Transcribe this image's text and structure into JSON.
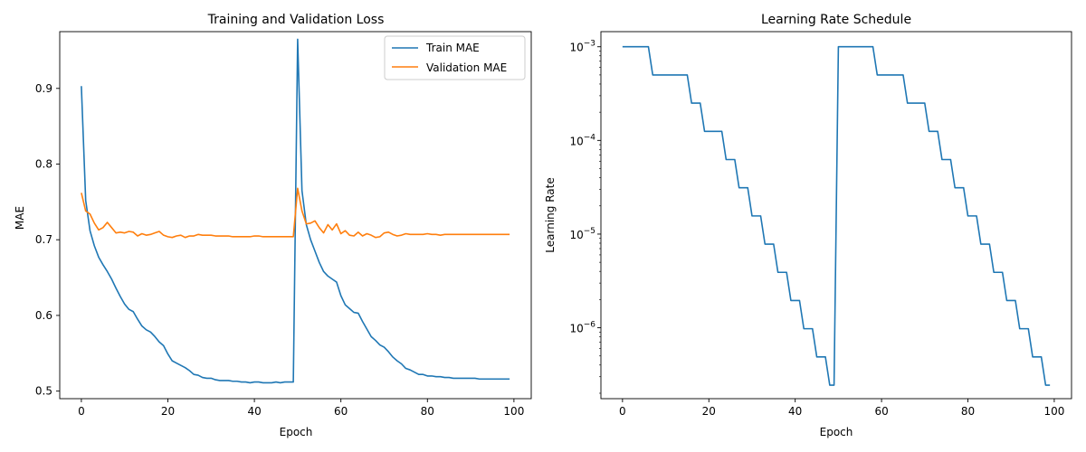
{
  "chart_data": [
    {
      "type": "line",
      "title": "Training and Validation Loss",
      "xlabel": "Epoch",
      "ylabel": "MAE",
      "xlim": [
        -5,
        104
      ],
      "ylim": [
        0.49,
        0.975
      ],
      "xticks": [
        0,
        20,
        40,
        60,
        80,
        100
      ],
      "xtick_labels": [
        "0",
        "20",
        "40",
        "60",
        "80",
        "100"
      ],
      "yticks": [
        0.5,
        0.6,
        0.7,
        0.8,
        0.9
      ],
      "ytick_labels": [
        "0.5",
        "0.6",
        "0.7",
        "0.8",
        "0.9"
      ],
      "legend_position": "top-right",
      "grid": false,
      "series": [
        {
          "name": "Train MAE",
          "color": "#1f77b4",
          "x": [
            0,
            1,
            2,
            3,
            4,
            5,
            6,
            7,
            8,
            9,
            10,
            11,
            12,
            13,
            14,
            15,
            16,
            17,
            18,
            19,
            20,
            21,
            22,
            23,
            24,
            25,
            26,
            27,
            28,
            29,
            30,
            31,
            32,
            33,
            34,
            35,
            36,
            37,
            38,
            39,
            40,
            41,
            42,
            43,
            44,
            45,
            46,
            47,
            48,
            49,
            50,
            51,
            52,
            53,
            54,
            55,
            56,
            57,
            58,
            59,
            60,
            61,
            62,
            63,
            64,
            65,
            66,
            67,
            68,
            69,
            70,
            71,
            72,
            73,
            74,
            75,
            76,
            77,
            78,
            79,
            80,
            81,
            82,
            83,
            84,
            85,
            86,
            87,
            88,
            89,
            90,
            91,
            92,
            93,
            94,
            95,
            96,
            97,
            98,
            99
          ],
          "values": [
            0.903,
            0.752,
            0.712,
            0.692,
            0.677,
            0.667,
            0.658,
            0.648,
            0.636,
            0.625,
            0.615,
            0.608,
            0.605,
            0.595,
            0.586,
            0.581,
            0.578,
            0.572,
            0.565,
            0.56,
            0.549,
            0.54,
            0.537,
            0.534,
            0.531,
            0.527,
            0.522,
            0.521,
            0.518,
            0.517,
            0.517,
            0.515,
            0.514,
            0.514,
            0.514,
            0.513,
            0.513,
            0.512,
            0.512,
            0.511,
            0.512,
            0.512,
            0.511,
            0.511,
            0.511,
            0.512,
            0.511,
            0.512,
            0.512,
            0.512,
            0.965,
            0.765,
            0.72,
            0.7,
            0.685,
            0.67,
            0.658,
            0.652,
            0.648,
            0.644,
            0.626,
            0.614,
            0.609,
            0.604,
            0.603,
            0.592,
            0.582,
            0.572,
            0.567,
            0.561,
            0.558,
            0.552,
            0.545,
            0.54,
            0.536,
            0.53,
            0.528,
            0.525,
            0.522,
            0.522,
            0.52,
            0.52,
            0.519,
            0.519,
            0.518,
            0.518,
            0.517,
            0.517,
            0.517,
            0.517,
            0.517,
            0.517,
            0.516,
            0.516,
            0.516,
            0.516,
            0.516,
            0.516,
            0.516,
            0.516
          ]
        },
        {
          "name": "Validation MAE",
          "color": "#ff7f0e",
          "x": [
            0,
            1,
            2,
            3,
            4,
            5,
            6,
            7,
            8,
            9,
            10,
            11,
            12,
            13,
            14,
            15,
            16,
            17,
            18,
            19,
            20,
            21,
            22,
            23,
            24,
            25,
            26,
            27,
            28,
            29,
            30,
            31,
            32,
            33,
            34,
            35,
            36,
            37,
            38,
            39,
            40,
            41,
            42,
            43,
            44,
            45,
            46,
            47,
            48,
            49,
            50,
            51,
            52,
            53,
            54,
            55,
            56,
            57,
            58,
            59,
            60,
            61,
            62,
            63,
            64,
            65,
            66,
            67,
            68,
            69,
            70,
            71,
            72,
            73,
            74,
            75,
            76,
            77,
            78,
            79,
            80,
            81,
            82,
            83,
            84,
            85,
            86,
            87,
            88,
            89,
            90,
            91,
            92,
            93,
            94,
            95,
            96,
            97,
            98,
            99
          ],
          "values": [
            0.762,
            0.738,
            0.734,
            0.722,
            0.713,
            0.716,
            0.723,
            0.716,
            0.709,
            0.71,
            0.709,
            0.711,
            0.71,
            0.705,
            0.708,
            0.706,
            0.707,
            0.709,
            0.711,
            0.706,
            0.704,
            0.703,
            0.705,
            0.706,
            0.703,
            0.705,
            0.705,
            0.707,
            0.706,
            0.706,
            0.706,
            0.705,
            0.705,
            0.705,
            0.705,
            0.704,
            0.704,
            0.704,
            0.704,
            0.704,
            0.705,
            0.705,
            0.704,
            0.704,
            0.704,
            0.704,
            0.704,
            0.704,
            0.704,
            0.704,
            0.768,
            0.738,
            0.721,
            0.722,
            0.725,
            0.716,
            0.709,
            0.72,
            0.713,
            0.721,
            0.708,
            0.712,
            0.706,
            0.705,
            0.71,
            0.705,
            0.708,
            0.706,
            0.703,
            0.704,
            0.709,
            0.71,
            0.707,
            0.705,
            0.706,
            0.708,
            0.707,
            0.707,
            0.707,
            0.707,
            0.708,
            0.707,
            0.707,
            0.706,
            0.707,
            0.707,
            0.707,
            0.707,
            0.707,
            0.707,
            0.707,
            0.707,
            0.707,
            0.707,
            0.707,
            0.707,
            0.707,
            0.707,
            0.707,
            0.707
          ]
        }
      ]
    },
    {
      "type": "line",
      "title": "Learning Rate Schedule",
      "xlabel": "Epoch",
      "ylabel": "Learning Rate",
      "yscale": "log",
      "xlim": [
        -5,
        104
      ],
      "ylim": [
        1.75e-07,
        0.00145
      ],
      "xticks": [
        0,
        20,
        40,
        60,
        80,
        100
      ],
      "xtick_labels": [
        "0",
        "20",
        "40",
        "60",
        "80",
        "100"
      ],
      "yticks": [
        1e-06,
        1e-05,
        0.0001,
        0.001
      ],
      "ytick_labels": [
        {
          "base": "10",
          "exp": "−6"
        },
        {
          "base": "10",
          "exp": "−5"
        },
        {
          "base": "10",
          "exp": "−4"
        },
        {
          "base": "10",
          "exp": "−3"
        }
      ],
      "grid": false,
      "series": [
        {
          "color": "#1f77b4",
          "x": [
            0,
            1,
            2,
            3,
            4,
            5,
            6,
            7,
            8,
            9,
            10,
            11,
            12,
            13,
            14,
            15,
            16,
            17,
            18,
            19,
            20,
            21,
            22,
            23,
            24,
            25,
            26,
            27,
            28,
            29,
            30,
            31,
            32,
            33,
            34,
            35,
            36,
            37,
            38,
            39,
            40,
            41,
            42,
            43,
            44,
            45,
            46,
            47,
            48,
            49,
            50,
            51,
            52,
            53,
            54,
            55,
            56,
            57,
            58,
            59,
            60,
            61,
            62,
            63,
            64,
            65,
            66,
            67,
            68,
            69,
            70,
            71,
            72,
            73,
            74,
            75,
            76,
            77,
            78,
            79,
            80,
            81,
            82,
            83,
            84,
            85,
            86,
            87,
            88,
            89,
            90,
            91,
            92,
            93,
            94,
            95,
            96,
            97,
            98,
            99
          ],
          "values": [
            0.001,
            0.001,
            0.001,
            0.001,
            0.001,
            0.001,
            0.001,
            0.0005,
            0.0005,
            0.0005,
            0.0005,
            0.0005,
            0.0005,
            0.0005,
            0.0005,
            0.0005,
            0.00025,
            0.00025,
            0.00025,
            0.000125,
            0.000125,
            0.000125,
            0.000125,
            0.000125,
            6.25e-05,
            6.25e-05,
            6.25e-05,
            3.125e-05,
            3.125e-05,
            3.125e-05,
            1.5625e-05,
            1.5625e-05,
            1.5625e-05,
            7.8125e-06,
            7.8125e-06,
            7.8125e-06,
            3.90625e-06,
            3.90625e-06,
            3.90625e-06,
            1.953125e-06,
            1.953125e-06,
            1.953125e-06,
            9.765625e-07,
            9.765625e-07,
            9.765625e-07,
            4.8828125e-07,
            4.8828125e-07,
            4.8828125e-07,
            2.44140625e-07,
            2.44140625e-07,
            0.001,
            0.001,
            0.001,
            0.001,
            0.001,
            0.001,
            0.001,
            0.001,
            0.001,
            0.0005,
            0.0005,
            0.0005,
            0.0005,
            0.0005,
            0.0005,
            0.0005,
            0.00025,
            0.00025,
            0.00025,
            0.00025,
            0.00025,
            0.000125,
            0.000125,
            0.000125,
            6.25e-05,
            6.25e-05,
            6.25e-05,
            3.125e-05,
            3.125e-05,
            3.125e-05,
            1.5625e-05,
            1.5625e-05,
            1.5625e-05,
            7.8125e-06,
            7.8125e-06,
            7.8125e-06,
            3.90625e-06,
            3.90625e-06,
            3.90625e-06,
            1.953125e-06,
            1.953125e-06,
            1.953125e-06,
            9.765625e-07,
            9.765625e-07,
            9.765625e-07,
            4.8828125e-07,
            4.8828125e-07,
            4.8828125e-07,
            2.44140625e-07,
            2.44140625e-07
          ]
        }
      ]
    }
  ]
}
